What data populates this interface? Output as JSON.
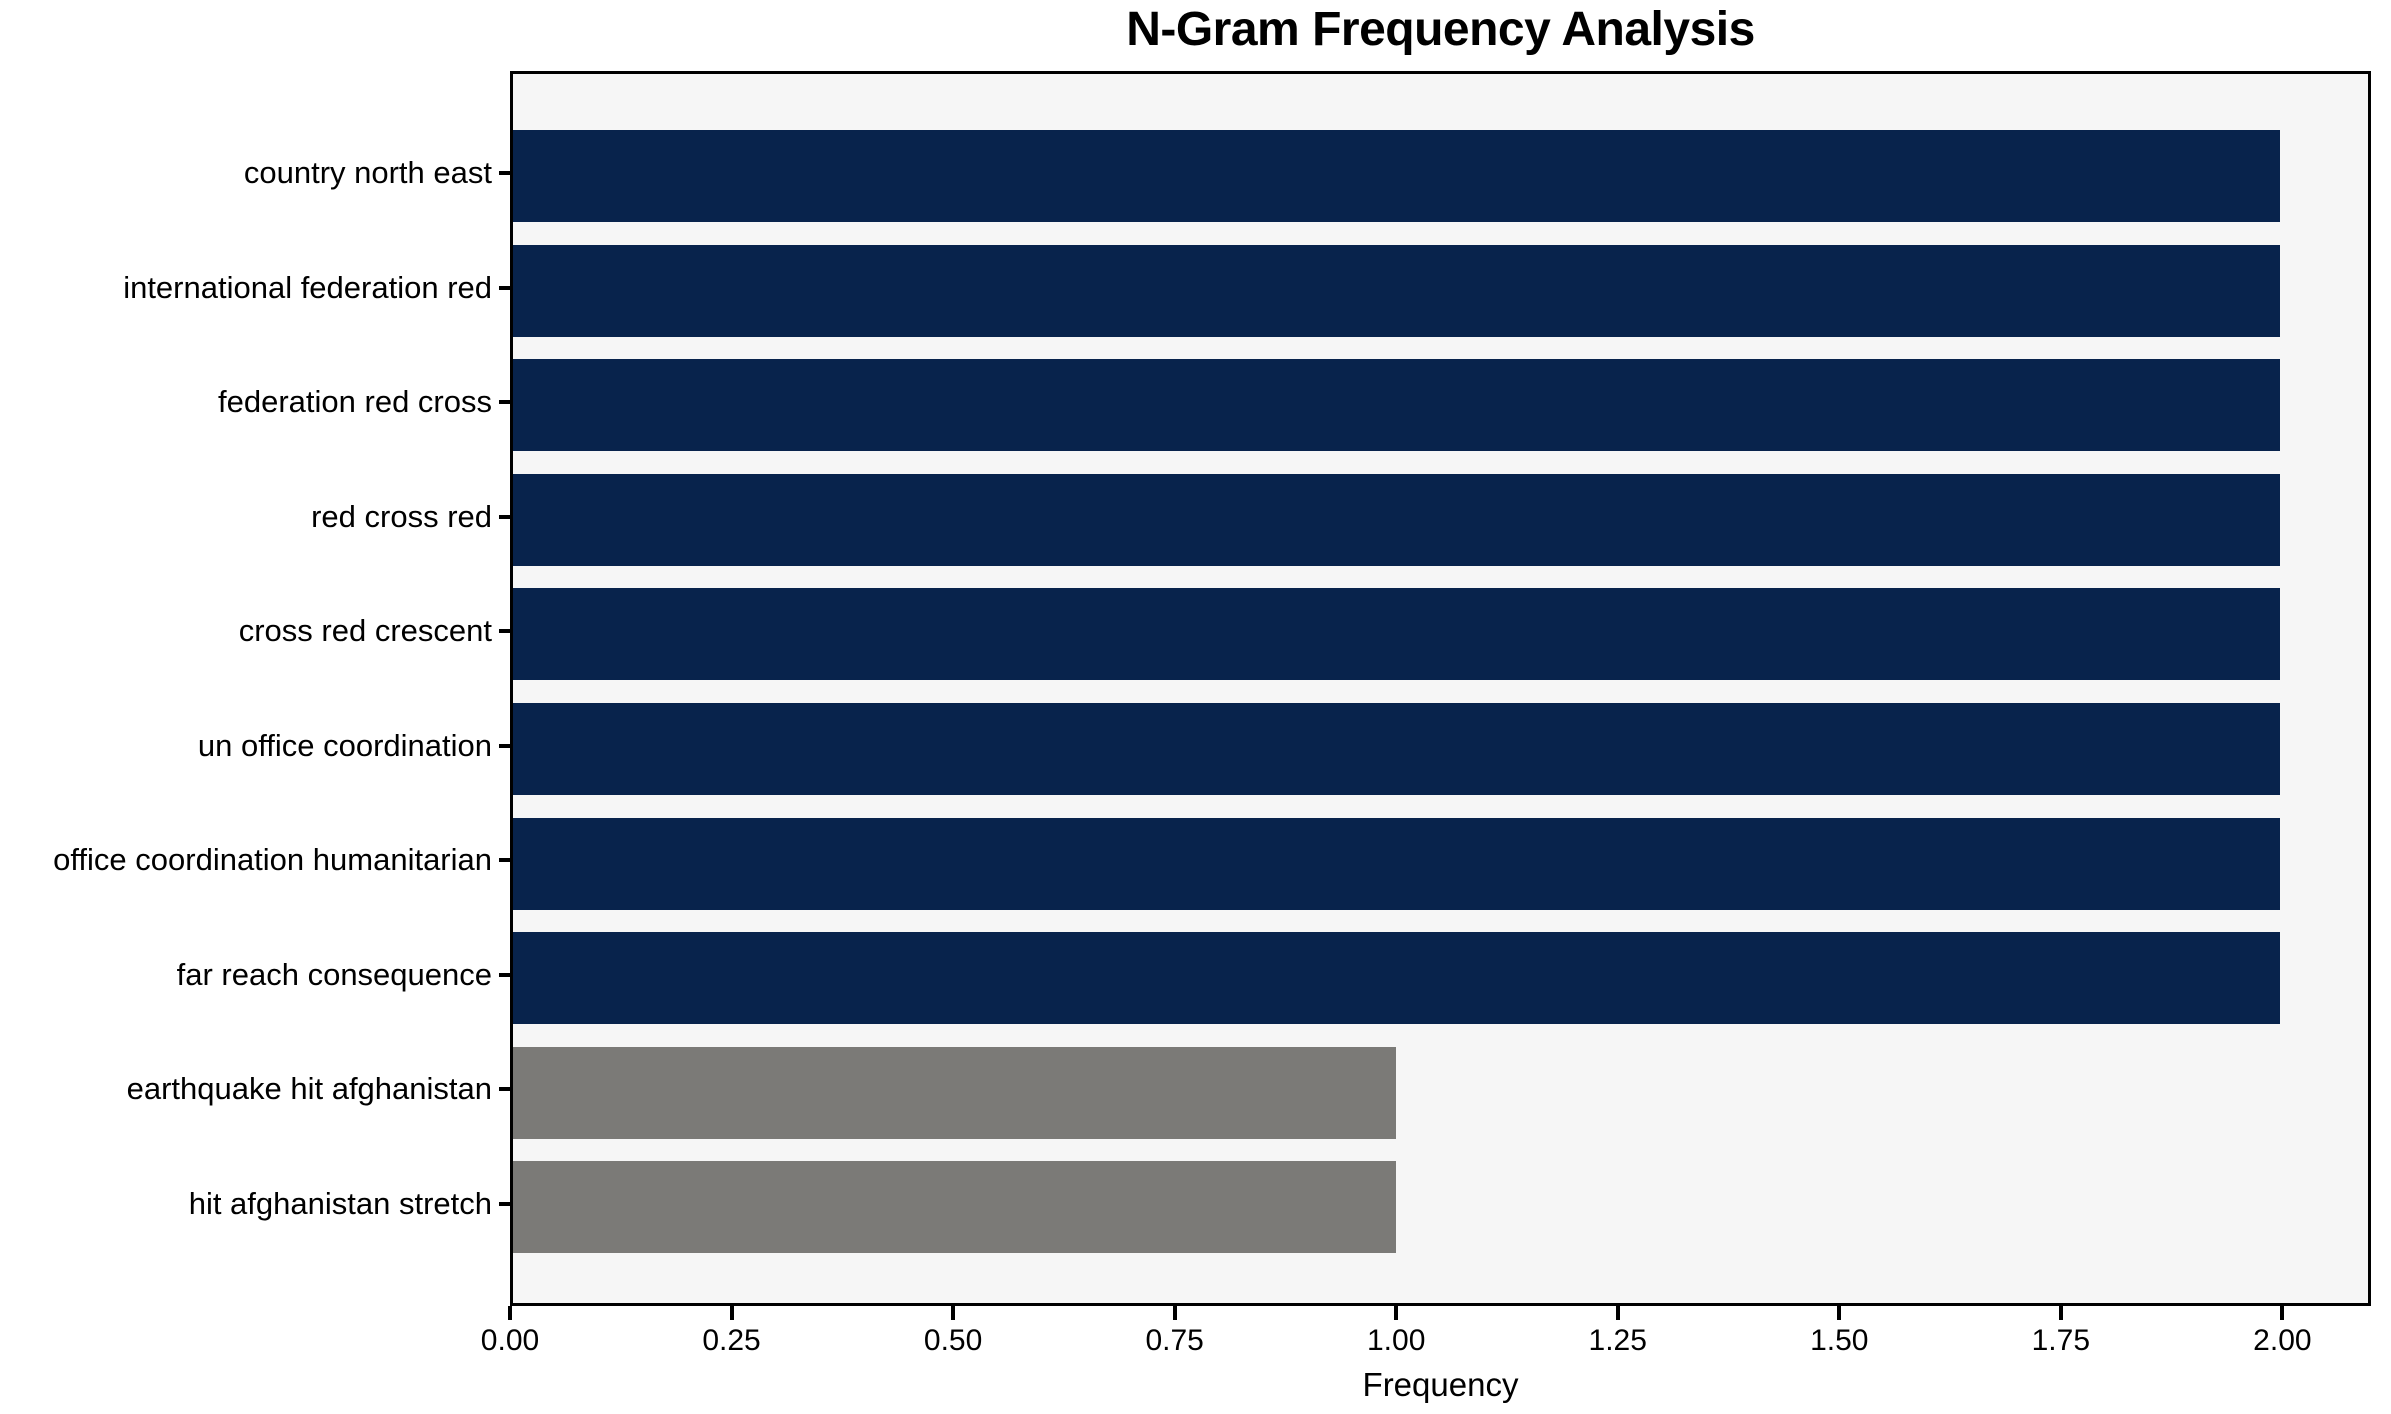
{
  "chart_data": {
    "type": "bar",
    "orientation": "horizontal",
    "title": "N-Gram Frequency Analysis",
    "xlabel": "Frequency",
    "ylabel": "",
    "categories": [
      "country north east",
      "international federation red",
      "federation red cross",
      "red cross red",
      "cross red crescent",
      "un office coordination",
      "office coordination humanitarian",
      "far reach consequence",
      "earthquake hit afghanistan",
      "hit afghanistan stretch"
    ],
    "values": [
      2,
      2,
      2,
      2,
      2,
      2,
      2,
      2,
      1,
      1
    ],
    "bar_colors": [
      "#08234c",
      "#08234c",
      "#08234c",
      "#08234c",
      "#08234c",
      "#08234c",
      "#08234c",
      "#08234c",
      "#7b7a77",
      "#7b7a77"
    ],
    "xlim": [
      0,
      2.1
    ],
    "xticks": [
      0.0,
      0.25,
      0.5,
      0.75,
      1.0,
      1.25,
      1.5,
      1.75,
      2.0
    ],
    "xtick_labels": [
      "0.00",
      "0.25",
      "0.50",
      "0.75",
      "1.00",
      "1.25",
      "1.50",
      "1.75",
      "2.00"
    ],
    "grid": false,
    "legend": "none",
    "colors": {
      "bar_high": "#08234c",
      "bar_low": "#7b7a77",
      "plot_background": "#f6f6f6",
      "figure_background": "#ffffff",
      "axis": "#000000",
      "text": "#000000"
    }
  }
}
